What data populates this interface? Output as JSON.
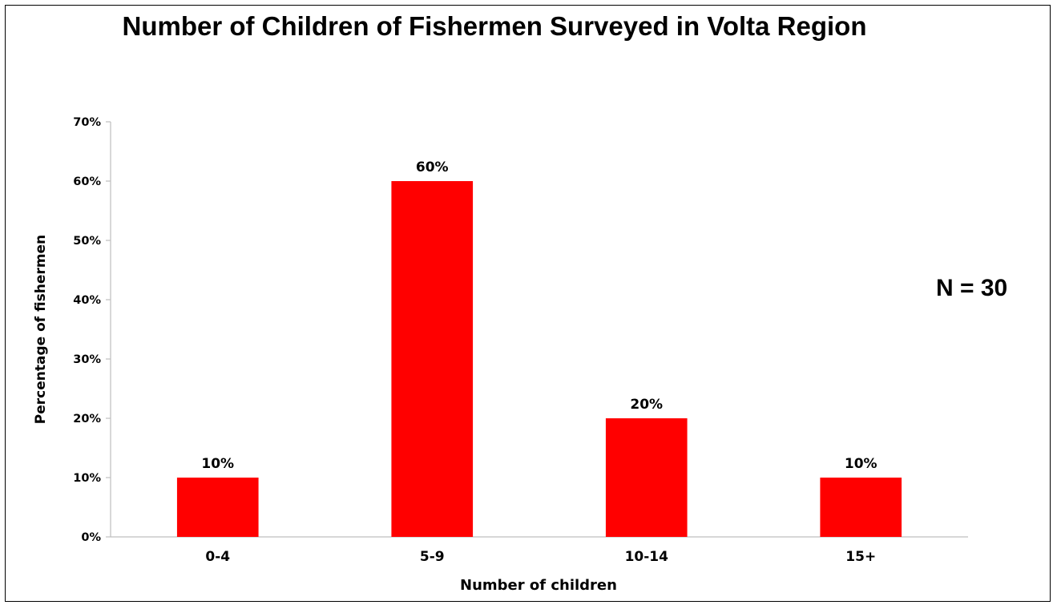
{
  "chart_data": {
    "type": "bar",
    "title": "Number of Children of Fishermen Surveyed in Volta Region",
    "xlabel": "Number of children",
    "ylabel": "Percentage of fishermen",
    "categories": [
      "0-4",
      "5-9",
      "10-14",
      "15+"
    ],
    "values": [
      10,
      60,
      20,
      10
    ],
    "data_labels": [
      "10%",
      "60%",
      "20%",
      "10%"
    ],
    "ylim": [
      0,
      70
    ],
    "yticks": [
      0,
      10,
      20,
      30,
      40,
      50,
      60,
      70
    ],
    "ytick_labels": [
      "0%",
      "10%",
      "20%",
      "30%",
      "40%",
      "50%",
      "60%",
      "70%"
    ],
    "annotation": "N = 30",
    "grid": false,
    "legend": "none",
    "bar_color": "#ff0000"
  }
}
